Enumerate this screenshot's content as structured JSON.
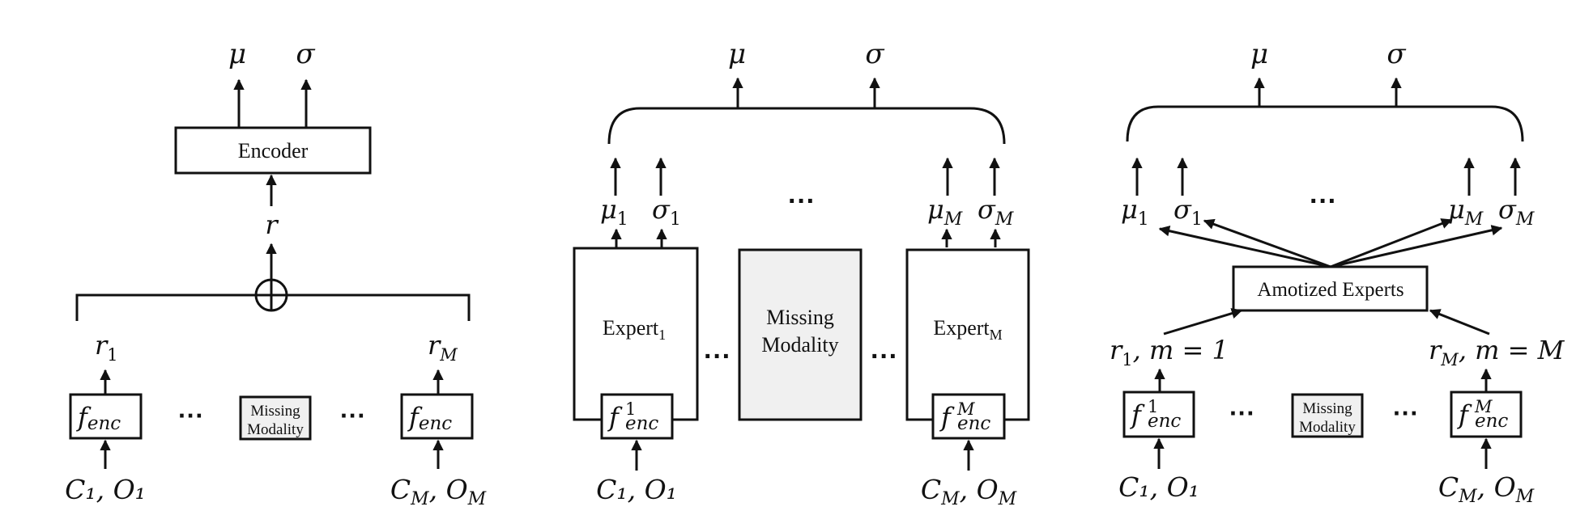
{
  "panel_a": {
    "mu": "μ",
    "sigma": "σ",
    "encoder": "Encoder",
    "r": "r",
    "r_first": "r",
    "r_first_sub": "1",
    "r_last": "r",
    "r_last_sub": "M",
    "f": "f",
    "f_sub": "enc",
    "missing_line1": "Missing",
    "missing_line2": "Modality",
    "dots": "···",
    "input_first": "C₁, O₁",
    "input_last": "C",
    "input_last_sub1": "M",
    "input_last_mid": ", O",
    "input_last_sub2": "M"
  },
  "panel_b": {
    "mu": "μ",
    "sigma": "σ",
    "mu_first": "μ",
    "sigma_first": "σ",
    "first_sub": "1",
    "mu_last": "μ",
    "sigma_last": "σ",
    "last_sub": "M",
    "dots": "···",
    "expert_first": "Expert",
    "expert_first_sub": "1",
    "expert_last": "Expert",
    "expert_last_sub": "M",
    "missing_line1": "Missing",
    "missing_line2": "Modality",
    "f": "f",
    "f_sub": "enc",
    "f_sup_first": "1",
    "f_sup_last": "M",
    "input_first": "C₁, O₁",
    "input_last": "C",
    "input_last_sub1": "M",
    "input_last_mid": ", O",
    "input_last_sub2": "M"
  },
  "panel_c": {
    "mu": "μ",
    "sigma": "σ",
    "mu_first": "μ",
    "sigma_first": "σ",
    "first_sub": "1",
    "mu_last": "μ",
    "sigma_last": "σ",
    "last_sub": "M",
    "dots": "···",
    "amortized": "Amotized Experts",
    "r_first": "r",
    "r_first_sub": "1",
    "r_first_rest": ", m = 1",
    "r_last": "r",
    "r_last_sub": "M",
    "r_last_rest": ", m = M",
    "f": "f",
    "f_sub": "enc",
    "f_sup_first": "1",
    "f_sup_last": "M",
    "missing_line1": "Missing",
    "missing_line2": "Modality",
    "input_first": "C₁, O₁",
    "input_last": "C",
    "input_last_sub1": "M",
    "input_last_mid": ", O",
    "input_last_sub2": "M"
  }
}
